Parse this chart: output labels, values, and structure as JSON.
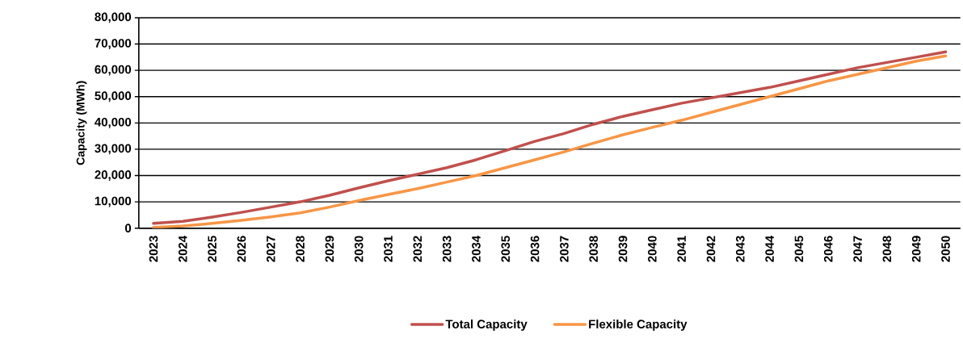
{
  "chart_data": {
    "type": "line",
    "ylabel": "Capacity (MWh)",
    "categories": [
      "2023",
      "2024",
      "2025",
      "2026",
      "2027",
      "2028",
      "2029",
      "2030",
      "2031",
      "2032",
      "2033",
      "2034",
      "2035",
      "2036",
      "2037",
      "2038",
      "2039",
      "2040",
      "2041",
      "2042",
      "2043",
      "2044",
      "2045",
      "2046",
      "2047",
      "2048",
      "2049",
      "2050"
    ],
    "series": [
      {
        "name": "Total Capacity",
        "color": "#c0504d",
        "values": [
          1800,
          2600,
          4200,
          6000,
          8000,
          10000,
          12500,
          15300,
          18000,
          20500,
          23000,
          26000,
          29500,
          33000,
          36000,
          39500,
          42500,
          45000,
          47500,
          49500,
          51500,
          53500,
          56000,
          58500,
          61000,
          63000,
          65000,
          67000
        ]
      },
      {
        "name": "Flexible Capacity",
        "color": "#f79646",
        "values": [
          300,
          800,
          1800,
          3000,
          4300,
          5800,
          8000,
          10500,
          12800,
          15000,
          17500,
          20000,
          23000,
          26000,
          29000,
          32300,
          35500,
          38300,
          41000,
          44000,
          47000,
          50000,
          53000,
          56000,
          58500,
          61000,
          63500,
          65500
        ]
      }
    ],
    "ylim": [
      0,
      80000
    ],
    "yticks": [
      {
        "value": 0,
        "label": "0"
      },
      {
        "value": 10000,
        "label": "10,000"
      },
      {
        "value": 20000,
        "label": "20,000"
      },
      {
        "value": 30000,
        "label": "30,000"
      },
      {
        "value": 40000,
        "label": "40,000"
      },
      {
        "value": 50000,
        "label": "50,000"
      },
      {
        "value": 60000,
        "label": "60,000"
      },
      {
        "value": 70000,
        "label": "70,000"
      },
      {
        "value": 80000,
        "label": "80,000"
      }
    ],
    "grid": "y",
    "legend": "bottom",
    "marker": "none",
    "line_style": "solid"
  }
}
